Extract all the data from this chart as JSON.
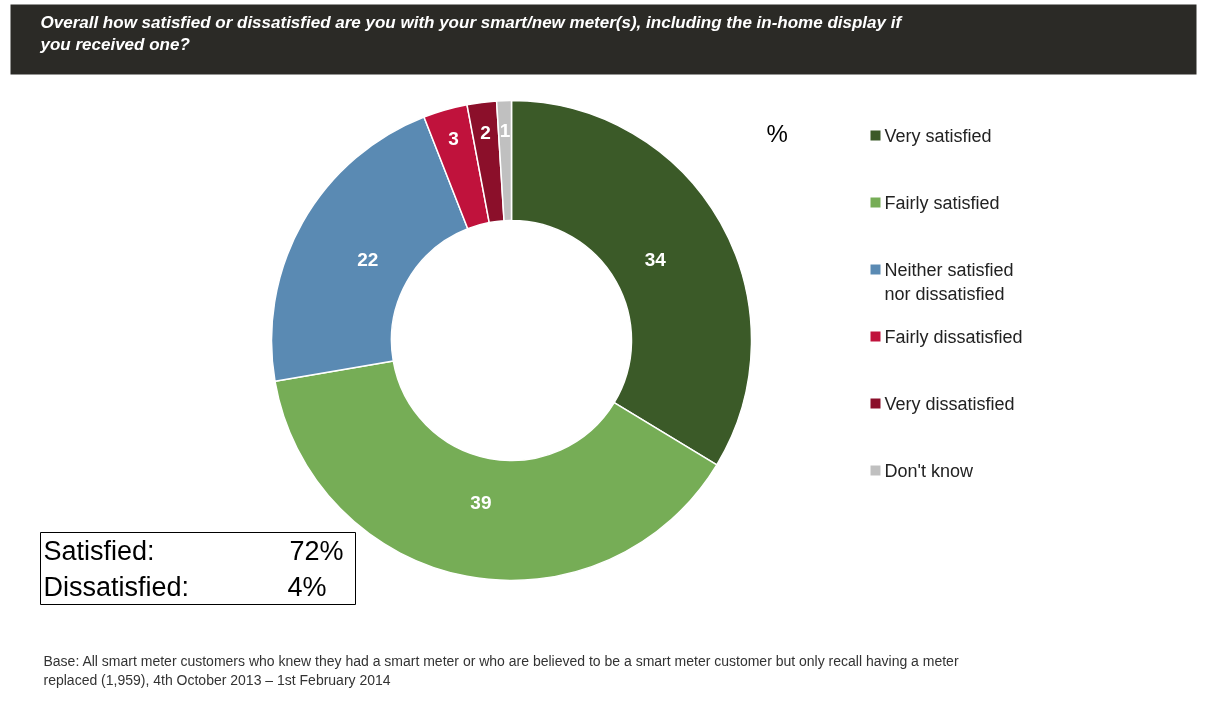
{
  "chart_data": {
    "type": "donut",
    "title": "Overall how satisfied or dissatisfied are you with your smart/new meter(s), including the in-home display if you received one?",
    "categories": [
      "Very satisfied",
      "Fairly satisfied",
      "Neither satisfied nor dissatisfied",
      "Fairly dissatisfied",
      "Very dissatisfied",
      "Don't know"
    ],
    "values": [
      34,
      39,
      22,
      3,
      2,
      1
    ],
    "colors": [
      "#3b5a28",
      "#76ad56",
      "#5a8ab3",
      "#c0123c",
      "#8b0f2a",
      "#c0c0c0"
    ],
    "data_labels": true,
    "legend": "right",
    "annotations": [
      "%",
      "Satisfied:",
      "72%",
      "Dissatisfied:",
      "4%",
      "Base: All smart meter customers who knew they had a smart meter or who are believed to be a smart meter customer but only recall having a meter replaced (1,959),  4th October 2013 – 1st February 2014"
    ]
  }
}
